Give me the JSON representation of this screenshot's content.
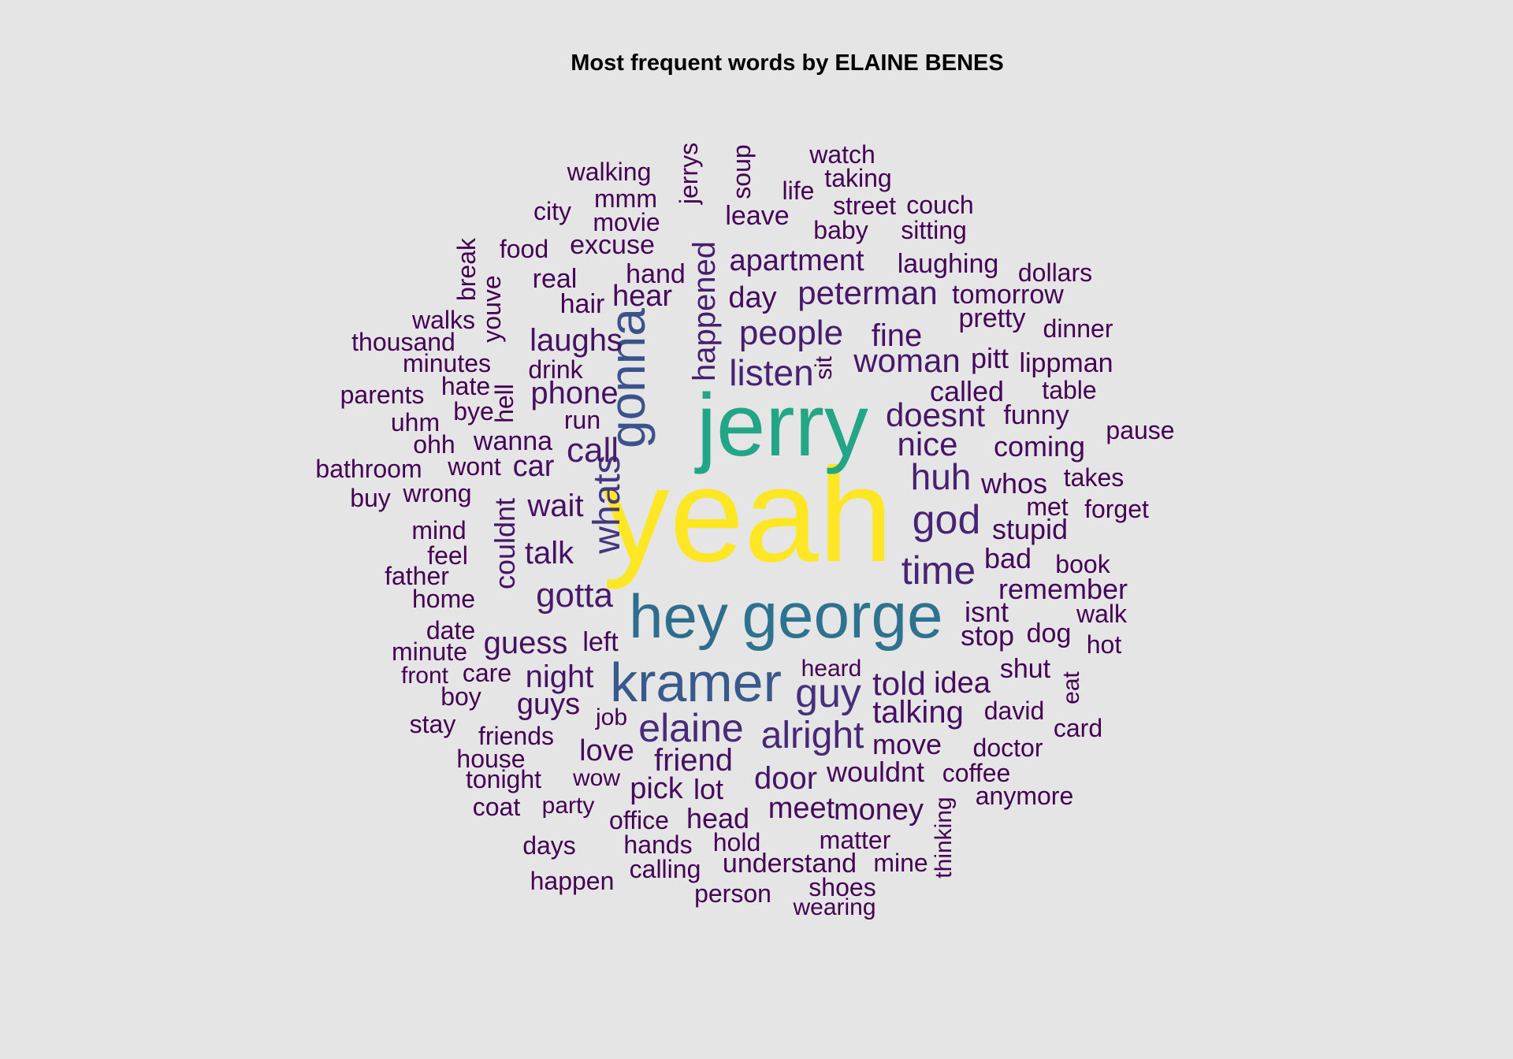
{
  "chart_data": {
    "type": "wordcloud",
    "title": "Most frequent words by ELAINE BENES",
    "color_scale": "viridis",
    "colors": {
      "background": "#e5e5e5",
      "title": "#000000"
    },
    "words": [
      {
        "text": "yeah",
        "weight": 1.0
      },
      {
        "text": "jerry",
        "weight": 0.78
      },
      {
        "text": "george",
        "weight": 0.55
      },
      {
        "text": "hey",
        "weight": 0.53
      },
      {
        "text": "kramer",
        "weight": 0.45
      },
      {
        "text": "gonna",
        "weight": 0.42
      },
      {
        "text": "whats",
        "weight": 0.32
      },
      {
        "text": "guy",
        "weight": 0.3
      },
      {
        "text": "elaine",
        "weight": 0.28
      },
      {
        "text": "alright",
        "weight": 0.27
      },
      {
        "text": "god",
        "weight": 0.26
      },
      {
        "text": "time",
        "weight": 0.26
      },
      {
        "text": "listen",
        "weight": 0.25
      },
      {
        "text": "huh",
        "weight": 0.25
      },
      {
        "text": "happened",
        "weight": 0.24
      },
      {
        "text": "people",
        "weight": 0.24
      },
      {
        "text": "gotta",
        "weight": 0.23
      },
      {
        "text": "call",
        "weight": 0.23
      },
      {
        "text": "woman",
        "weight": 0.22
      },
      {
        "text": "peterman",
        "weight": 0.22
      },
      {
        "text": "told",
        "weight": 0.22
      },
      {
        "text": "doesnt",
        "weight": 0.22
      },
      {
        "text": "nice",
        "weight": 0.22
      },
      {
        "text": "couldnt",
        "weight": 0.21
      },
      {
        "text": "night",
        "weight": 0.21
      },
      {
        "text": "door",
        "weight": 0.21
      },
      {
        "text": "guess",
        "weight": 0.2
      },
      {
        "text": "friend",
        "weight": 0.2
      },
      {
        "text": "talk",
        "weight": 0.2
      },
      {
        "text": "wait",
        "weight": 0.2
      },
      {
        "text": "phone",
        "weight": 0.2
      },
      {
        "text": "laughs",
        "weight": 0.2
      },
      {
        "text": "fine",
        "weight": 0.2
      },
      {
        "text": "talking",
        "weight": 0.19
      },
      {
        "text": "apartment",
        "weight": 0.19
      },
      {
        "text": "car",
        "weight": 0.19
      },
      {
        "text": "idea",
        "weight": 0.18
      },
      {
        "text": "day",
        "weight": 0.18
      },
      {
        "text": "guys",
        "weight": 0.18
      },
      {
        "text": "love",
        "weight": 0.18
      },
      {
        "text": "pick",
        "weight": 0.18
      },
      {
        "text": "meet",
        "weight": 0.18
      },
      {
        "text": "money",
        "weight": 0.18
      },
      {
        "text": "hear",
        "weight": 0.18
      },
      {
        "text": "wouldnt",
        "weight": 0.17
      },
      {
        "text": "move",
        "weight": 0.17
      },
      {
        "text": "head",
        "weight": 0.17
      },
      {
        "text": "lot",
        "weight": 0.17
      },
      {
        "text": "stop",
        "weight": 0.17
      },
      {
        "text": "isnt",
        "weight": 0.17
      },
      {
        "text": "bad",
        "weight": 0.17
      },
      {
        "text": "stupid",
        "weight": 0.17
      },
      {
        "text": "coming",
        "weight": 0.17
      },
      {
        "text": "called",
        "weight": 0.17
      },
      {
        "text": "pitt",
        "weight": 0.17
      },
      {
        "text": "remember",
        "weight": 0.17
      },
      {
        "text": "whos",
        "weight": 0.17
      },
      {
        "text": "funny",
        "weight": 0.16
      },
      {
        "text": "pretty",
        "weight": 0.16
      },
      {
        "text": "tomorrow",
        "weight": 0.16
      },
      {
        "text": "laughing",
        "weight": 0.16
      },
      {
        "text": "leave",
        "weight": 0.16
      },
      {
        "text": "wanna",
        "weight": 0.16
      },
      {
        "text": "left",
        "weight": 0.16
      },
      {
        "text": "real",
        "weight": 0.16
      },
      {
        "text": "hand",
        "weight": 0.16
      },
      {
        "text": "excuse",
        "weight": 0.16
      },
      {
        "text": "jerrys",
        "weight": 0.15
      },
      {
        "text": "hair",
        "weight": 0.15
      },
      {
        "text": "wont",
        "weight": 0.15
      },
      {
        "text": "lippman",
        "weight": 0.15
      },
      {
        "text": "dog",
        "weight": 0.15
      },
      {
        "text": "shut",
        "weight": 0.15
      },
      {
        "text": "david",
        "weight": 0.15
      },
      {
        "text": "doctor",
        "weight": 0.15
      },
      {
        "text": "coffee",
        "weight": 0.15
      },
      {
        "text": "matter",
        "weight": 0.15
      },
      {
        "text": "hold",
        "weight": 0.15
      },
      {
        "text": "office",
        "weight": 0.15
      },
      {
        "text": "understand",
        "weight": 0.15
      },
      {
        "text": "hands",
        "weight": 0.15
      },
      {
        "text": "calling",
        "weight": 0.15
      },
      {
        "text": "mine",
        "weight": 0.15
      },
      {
        "text": "shoes",
        "weight": 0.15
      },
      {
        "text": "person",
        "weight": 0.15
      },
      {
        "text": "wearing",
        "weight": 0.15
      },
      {
        "text": "thinking",
        "weight": 0.15
      },
      {
        "text": "heard",
        "weight": 0.15
      },
      {
        "text": "job",
        "weight": 0.15
      },
      {
        "text": "wow",
        "weight": 0.15
      },
      {
        "text": "party",
        "weight": 0.15
      },
      {
        "text": "tonight",
        "weight": 0.15
      },
      {
        "text": "friends",
        "weight": 0.15
      },
      {
        "text": "care",
        "weight": 0.15
      },
      {
        "text": "front",
        "weight": 0.15
      },
      {
        "text": "date",
        "weight": 0.15
      },
      {
        "text": "home",
        "weight": 0.15
      },
      {
        "text": "minute",
        "weight": 0.15
      },
      {
        "text": "father",
        "weight": 0.15
      },
      {
        "text": "feel",
        "weight": 0.15
      },
      {
        "text": "mind",
        "weight": 0.15
      },
      {
        "text": "wrong",
        "weight": 0.15
      },
      {
        "text": "bathroom",
        "weight": 0.15
      },
      {
        "text": "buy",
        "weight": 0.15
      },
      {
        "text": "ohh",
        "weight": 0.15
      },
      {
        "text": "uhm",
        "weight": 0.15
      },
      {
        "text": "bye",
        "weight": 0.15
      },
      {
        "text": "hate",
        "weight": 0.15
      },
      {
        "text": "parents",
        "weight": 0.15
      },
      {
        "text": "minutes",
        "weight": 0.15
      },
      {
        "text": "thousand",
        "weight": 0.15
      },
      {
        "text": "walks",
        "weight": 0.15
      },
      {
        "text": "drink",
        "weight": 0.15
      },
      {
        "text": "run",
        "weight": 0.15
      },
      {
        "text": "hell",
        "weight": 0.15
      },
      {
        "text": "youve",
        "weight": 0.15
      },
      {
        "text": "break",
        "weight": 0.15
      },
      {
        "text": "food",
        "weight": 0.15
      },
      {
        "text": "city",
        "weight": 0.15
      },
      {
        "text": "movie",
        "weight": 0.15
      },
      {
        "text": "mmm",
        "weight": 0.15
      },
      {
        "text": "walking",
        "weight": 0.15
      },
      {
        "text": "soup",
        "weight": 0.15
      },
      {
        "text": "life",
        "weight": 0.15
      },
      {
        "text": "watch",
        "weight": 0.15
      },
      {
        "text": "taking",
        "weight": 0.15
      },
      {
        "text": "street",
        "weight": 0.15
      },
      {
        "text": "couch",
        "weight": 0.15
      },
      {
        "text": "baby",
        "weight": 0.15
      },
      {
        "text": "sitting",
        "weight": 0.15
      },
      {
        "text": "dollars",
        "weight": 0.15
      },
      {
        "text": "dinner",
        "weight": 0.15
      },
      {
        "text": "table",
        "weight": 0.15
      },
      {
        "text": "pause",
        "weight": 0.15
      },
      {
        "text": "takes",
        "weight": 0.15
      },
      {
        "text": "met",
        "weight": 0.15
      },
      {
        "text": "forget",
        "weight": 0.15
      },
      {
        "text": "book",
        "weight": 0.15
      },
      {
        "text": "walk",
        "weight": 0.15
      },
      {
        "text": "hot",
        "weight": 0.15
      },
      {
        "text": "eat",
        "weight": 0.15
      },
      {
        "text": "card",
        "weight": 0.15
      },
      {
        "text": "anymore",
        "weight": 0.15
      },
      {
        "text": "sit",
        "weight": 0.15
      },
      {
        "text": "boy",
        "weight": 0.15
      },
      {
        "text": "stay",
        "weight": 0.15
      },
      {
        "text": "house",
        "weight": 0.15
      },
      {
        "text": "coat",
        "weight": 0.15
      },
      {
        "text": "days",
        "weight": 0.15
      },
      {
        "text": "happen",
        "weight": 0.15
      }
    ]
  }
}
